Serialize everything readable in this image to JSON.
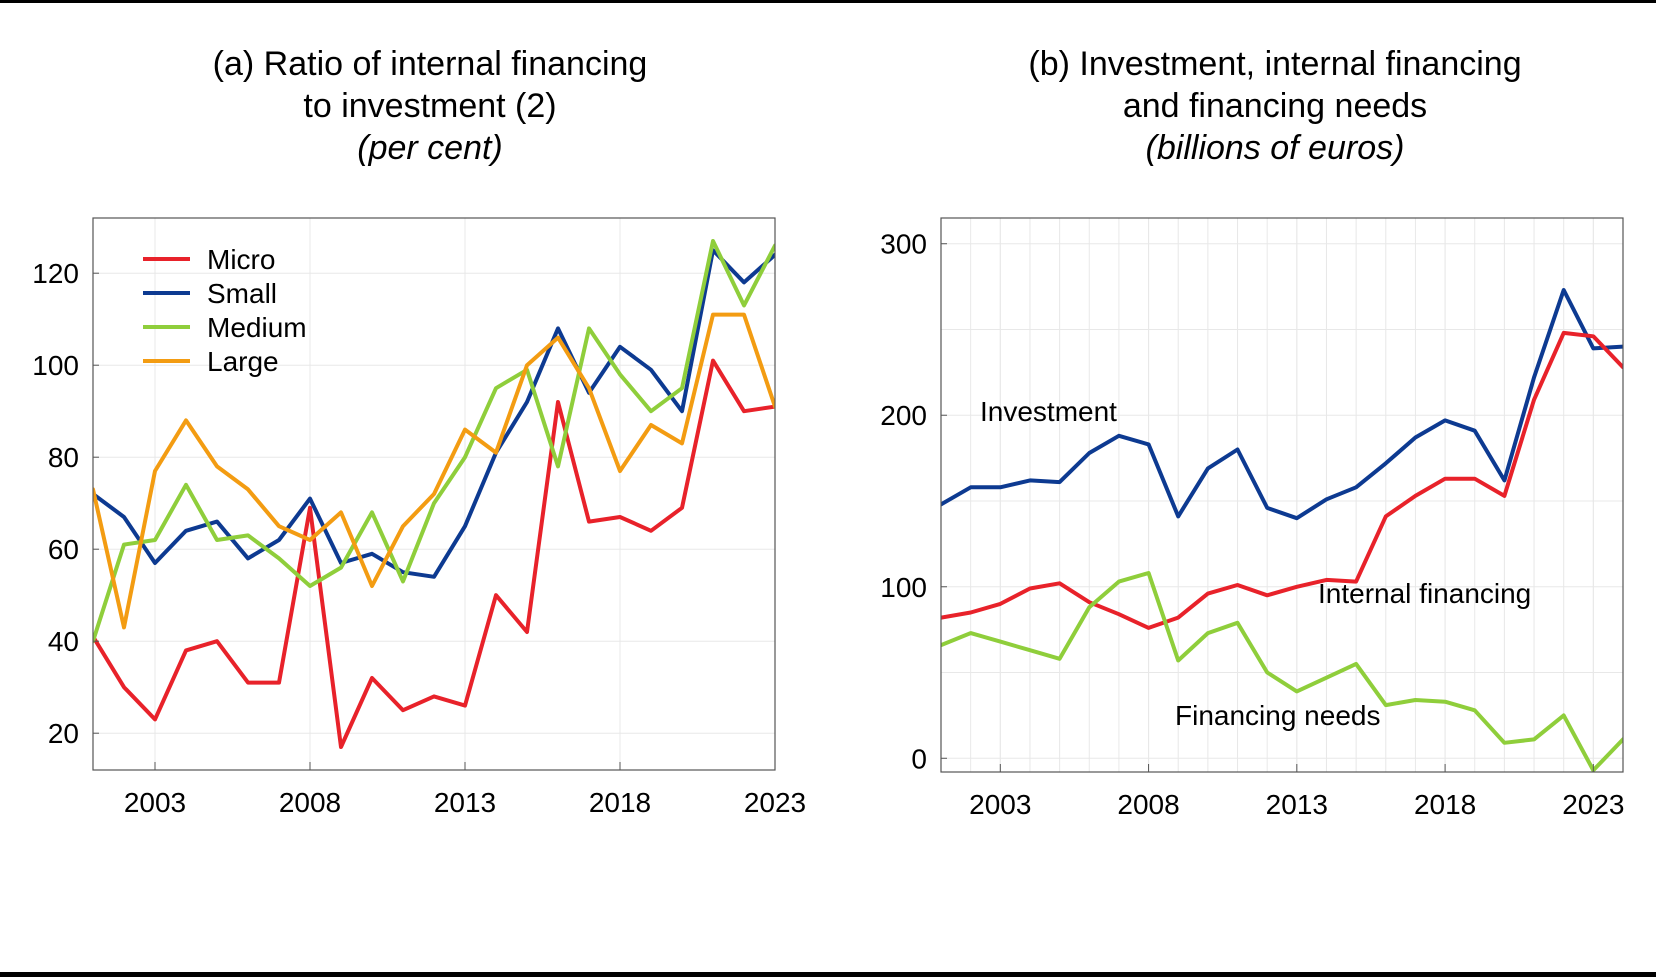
{
  "chart_data": [
    {
      "type": "line",
      "title": "(a) Ratio of internal financing",
      "title_line2": "to investment (2)",
      "subtitle": "(per cent)",
      "xlabel": "",
      "ylabel": "",
      "x": [
        2001,
        2002,
        2003,
        2004,
        2005,
        2006,
        2007,
        2008,
        2009,
        2010,
        2011,
        2012,
        2013,
        2014,
        2015,
        2016,
        2017,
        2018,
        2019,
        2020,
        2021,
        2022,
        2023
      ],
      "xlim": [
        2001,
        2023
      ],
      "ylim": [
        12,
        132
      ],
      "xticks": [
        "2003",
        "2008",
        "2013",
        "2018",
        "2023"
      ],
      "yticks": [
        "20",
        "40",
        "60",
        "80",
        "100",
        "120"
      ],
      "grid": true,
      "legend_position": "top-left",
      "series": [
        {
          "name": "Micro",
          "color": "#e8222a",
          "values": [
            41,
            30,
            23,
            38,
            40,
            31,
            31,
            69,
            17,
            32,
            25,
            28,
            26,
            50,
            42,
            92,
            66,
            67,
            64,
            69,
            101,
            90,
            91
          ]
        },
        {
          "name": "Small",
          "color": "#0d3a91",
          "values": [
            72,
            67,
            57,
            64,
            66,
            58,
            62,
            71,
            57,
            59,
            55,
            54,
            65,
            81,
            92,
            108,
            94,
            104,
            99,
            90,
            125,
            118,
            124
          ]
        },
        {
          "name": "Medium",
          "color": "#8fce3b",
          "values": [
            40,
            61,
            62,
            74,
            62,
            63,
            58,
            52,
            56,
            68,
            53,
            70,
            80,
            95,
            99,
            78,
            108,
            98,
            90,
            95,
            127,
            113,
            126
          ]
        },
        {
          "name": "Large",
          "color": "#f39c12",
          "values": [
            73,
            43,
            77,
            88,
            78,
            73,
            65,
            62,
            68,
            52,
            65,
            72,
            86,
            81,
            100,
            106,
            95,
            77,
            87,
            83,
            111,
            111,
            91
          ]
        }
      ]
    },
    {
      "type": "line",
      "title": "(b) Investment, internal financing",
      "title_line2": "and financing needs",
      "subtitle": "(billions of euros)",
      "xlabel": "",
      "ylabel": "",
      "x": [
        2001,
        2002,
        2003,
        2004,
        2005,
        2006,
        2007,
        2008,
        2009,
        2010,
        2011,
        2012,
        2013,
        2014,
        2015,
        2016,
        2017,
        2018,
        2019,
        2020,
        2021,
        2022,
        2023,
        2024
      ],
      "xlim": [
        2001,
        2024
      ],
      "ylim": [
        -8,
        315
      ],
      "xticks": [
        "2003",
        "2008",
        "2013",
        "2018",
        "2023"
      ],
      "yticks": [
        "0",
        "100",
        "200",
        "300"
      ],
      "grid": true,
      "series": [
        {
          "name": "Investment",
          "color": "#0d3a91",
          "values": [
            148,
            158,
            158,
            162,
            161,
            178,
            188,
            183,
            141,
            169,
            180,
            146,
            140,
            151,
            158,
            172,
            187,
            197,
            191,
            162,
            222,
            273,
            239,
            240
          ]
        },
        {
          "name": "Internal financing",
          "color": "#e8222a",
          "values": [
            82,
            85,
            90,
            99,
            102,
            91,
            84,
            76,
            82,
            96,
            101,
            95,
            100,
            104,
            103,
            141,
            153,
            163,
            163,
            153,
            209,
            248,
            246,
            228
          ]
        },
        {
          "name": "Financing needs",
          "color": "#8fce3b",
          "values": [
            66,
            73,
            68,
            63,
            58,
            88,
            103,
            108,
            57,
            73,
            79,
            50,
            39,
            47,
            55,
            31,
            34,
            33,
            28,
            9,
            11,
            25,
            -7,
            11
          ]
        }
      ]
    }
  ]
}
